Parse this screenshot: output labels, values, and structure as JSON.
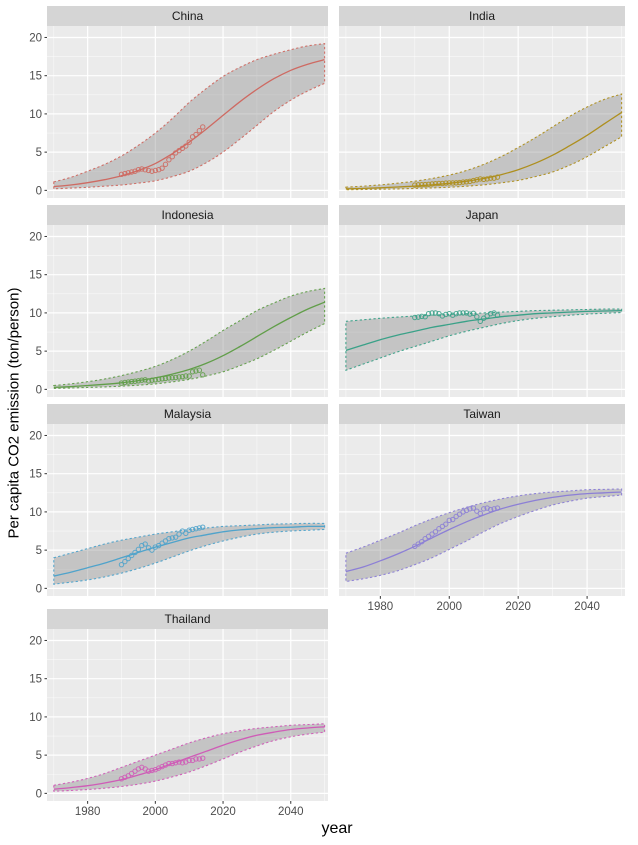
{
  "chart_data": {
    "type": "line",
    "title": "",
    "xlabel": "year",
    "ylabel": "Per capita CO2 emission (ton/person)",
    "x_ticks": [
      1980,
      2000,
      2020,
      2040
    ],
    "x_minor_ticks": [
      1970,
      1990,
      2010,
      2030,
      2050
    ],
    "y_ticks": [
      0,
      5,
      10,
      15,
      20
    ],
    "y_minor_ticks": [
      2.5,
      7.5,
      12.5,
      17.5
    ],
    "xlim": [
      1968,
      2051
    ],
    "ylim": [
      -1,
      21.5
    ],
    "grid": "white major and minor gridlines on gray panel",
    "legend_position": "none",
    "facet_layout": "2 columns x 4 rows, last cell empty",
    "ribbon_description": "gray confidence band with dashed colored outline around logistic fit",
    "curve_years": [
      1970,
      1975,
      1980,
      1985,
      1990,
      1995,
      2000,
      2005,
      2010,
      2015,
      2020,
      2025,
      2030,
      2035,
      2040,
      2045,
      2050
    ],
    "facets": [
      {
        "label": "China",
        "color": "#ce6a62",
        "fit": [
          0.5,
          0.7,
          1.0,
          1.4,
          1.9,
          2.6,
          3.5,
          4.8,
          6.3,
          8.0,
          9.8,
          11.6,
          13.2,
          14.6,
          15.7,
          16.5,
          17.1
        ],
        "upper": [
          1.1,
          1.7,
          2.5,
          3.4,
          4.5,
          5.9,
          7.5,
          9.4,
          11.5,
          13.3,
          14.9,
          16.1,
          17.1,
          17.8,
          18.4,
          18.9,
          19.2
        ],
        "lower": [
          0.2,
          0.3,
          0.4,
          0.55,
          0.7,
          0.95,
          1.25,
          1.8,
          2.5,
          3.6,
          5.0,
          6.7,
          8.5,
          10.3,
          11.8,
          13.0,
          14.0
        ],
        "points": [
          [
            1990,
            2.1
          ],
          [
            1991,
            2.2
          ],
          [
            1992,
            2.3
          ],
          [
            1993,
            2.4
          ],
          [
            1994,
            2.5
          ],
          [
            1995,
            2.7
          ],
          [
            1996,
            2.8
          ],
          [
            1997,
            2.7
          ],
          [
            1998,
            2.6
          ],
          [
            1999,
            2.5
          ],
          [
            2000,
            2.6
          ],
          [
            2001,
            2.7
          ],
          [
            2002,
            2.9
          ],
          [
            2003,
            3.4
          ],
          [
            2004,
            4.0
          ],
          [
            2005,
            4.4
          ],
          [
            2006,
            4.9
          ],
          [
            2007,
            5.2
          ],
          [
            2008,
            5.5
          ],
          [
            2009,
            5.8
          ],
          [
            2010,
            6.3
          ],
          [
            2011,
            7.0
          ],
          [
            2012,
            7.3
          ],
          [
            2013,
            7.8
          ],
          [
            2014,
            8.3
          ]
        ]
      },
      {
        "label": "India",
        "color": "#ae8f1e",
        "fit": [
          0.2,
          0.26,
          0.34,
          0.44,
          0.56,
          0.72,
          0.92,
          1.2,
          1.55,
          2.05,
          2.7,
          3.55,
          4.6,
          5.85,
          7.2,
          8.7,
          10.2
        ],
        "upper": [
          0.42,
          0.55,
          0.72,
          0.93,
          1.2,
          1.55,
          2.0,
          2.6,
          3.4,
          4.4,
          5.6,
          6.9,
          8.3,
          9.7,
          10.9,
          11.9,
          12.6
        ],
        "lower": [
          0.08,
          0.11,
          0.15,
          0.19,
          0.25,
          0.32,
          0.41,
          0.54,
          0.72,
          0.98,
          1.3,
          1.8,
          2.4,
          3.3,
          4.4,
          5.7,
          7.0
        ],
        "points": [
          [
            1990,
            0.69
          ],
          [
            1991,
            0.72
          ],
          [
            1992,
            0.74
          ],
          [
            1993,
            0.76
          ],
          [
            1994,
            0.79
          ],
          [
            1995,
            0.84
          ],
          [
            1996,
            0.87
          ],
          [
            1997,
            0.9
          ],
          [
            1998,
            0.9
          ],
          [
            1999,
            0.95
          ],
          [
            2000,
            0.97
          ],
          [
            2001,
            0.97
          ],
          [
            2002,
            0.99
          ],
          [
            2003,
            1.02
          ],
          [
            2004,
            1.08
          ],
          [
            2005,
            1.12
          ],
          [
            2006,
            1.18
          ],
          [
            2007,
            1.28
          ],
          [
            2008,
            1.38
          ],
          [
            2009,
            1.5
          ],
          [
            2010,
            1.44
          ],
          [
            2011,
            1.5
          ],
          [
            2012,
            1.6
          ],
          [
            2013,
            1.6
          ],
          [
            2014,
            1.73
          ]
        ]
      },
      {
        "label": "Indonesia",
        "color": "#619e49",
        "fit": [
          0.25,
          0.36,
          0.5,
          0.66,
          0.86,
          1.15,
          1.5,
          2.0,
          2.6,
          3.4,
          4.4,
          5.6,
          6.9,
          8.2,
          9.4,
          10.5,
          11.4
        ],
        "upper": [
          0.5,
          0.72,
          1.0,
          1.35,
          1.8,
          2.35,
          3.0,
          3.9,
          5.0,
          6.3,
          7.7,
          9.0,
          10.3,
          11.3,
          12.2,
          12.8,
          13.2
        ],
        "lower": [
          0.12,
          0.18,
          0.25,
          0.32,
          0.42,
          0.55,
          0.72,
          0.98,
          1.3,
          1.75,
          2.3,
          3.1,
          4.0,
          5.1,
          6.3,
          7.5,
          8.6
        ],
        "points": [
          [
            1990,
            0.82
          ],
          [
            1991,
            0.9
          ],
          [
            1992,
            0.96
          ],
          [
            1993,
            1.02
          ],
          [
            1994,
            1.06
          ],
          [
            1995,
            1.12
          ],
          [
            1996,
            1.2
          ],
          [
            1997,
            1.25
          ],
          [
            1998,
            1.1
          ],
          [
            1999,
            1.2
          ],
          [
            2000,
            1.25
          ],
          [
            2001,
            1.33
          ],
          [
            2002,
            1.38
          ],
          [
            2003,
            1.43
          ],
          [
            2004,
            1.5
          ],
          [
            2005,
            1.52
          ],
          [
            2006,
            1.55
          ],
          [
            2007,
            1.62
          ],
          [
            2008,
            1.66
          ],
          [
            2009,
            1.75
          ],
          [
            2010,
            1.73
          ],
          [
            2011,
            2.3
          ],
          [
            2012,
            2.4
          ],
          [
            2013,
            2.5
          ],
          [
            2014,
            1.9
          ]
        ]
      },
      {
        "label": "Japan",
        "color": "#3aa188",
        "fit": [
          5.1,
          5.8,
          6.5,
          7.1,
          7.6,
          8.1,
          8.5,
          8.9,
          9.2,
          9.5,
          9.7,
          9.9,
          10.0,
          10.1,
          10.2,
          10.25,
          10.3
        ],
        "upper": [
          8.9,
          9.1,
          9.3,
          9.45,
          9.6,
          9.7,
          9.8,
          9.9,
          10.0,
          10.1,
          10.2,
          10.3,
          10.35,
          10.4,
          10.45,
          10.5,
          10.5
        ],
        "lower": [
          2.5,
          3.3,
          4.1,
          4.9,
          5.6,
          6.3,
          7.0,
          7.6,
          8.1,
          8.6,
          9.0,
          9.3,
          9.5,
          9.7,
          9.85,
          9.95,
          10.05
        ],
        "points": [
          [
            1990,
            9.4
          ],
          [
            1991,
            9.45
          ],
          [
            1992,
            9.55
          ],
          [
            1993,
            9.5
          ],
          [
            1994,
            9.9
          ],
          [
            1995,
            10.0
          ],
          [
            1996,
            10.0
          ],
          [
            1997,
            9.9
          ],
          [
            1998,
            9.6
          ],
          [
            1999,
            9.8
          ],
          [
            2000,
            9.9
          ],
          [
            2001,
            9.7
          ],
          [
            2002,
            9.9
          ],
          [
            2003,
            10.0
          ],
          [
            2004,
            10.0
          ],
          [
            2005,
            10.0
          ],
          [
            2006,
            9.85
          ],
          [
            2007,
            9.95
          ],
          [
            2008,
            9.5
          ],
          [
            2009,
            8.9
          ],
          [
            2010,
            9.3
          ],
          [
            2011,
            9.6
          ],
          [
            2012,
            9.9
          ],
          [
            2013,
            10.0
          ],
          [
            2014,
            9.7
          ]
        ]
      },
      {
        "label": "Malaysia",
        "color": "#4fa3cb",
        "fit": [
          1.6,
          2.1,
          2.7,
          3.3,
          4.0,
          4.7,
          5.4,
          6.0,
          6.6,
          7.0,
          7.4,
          7.65,
          7.8,
          7.95,
          8.0,
          8.1,
          8.1
        ],
        "upper": [
          4.0,
          4.6,
          5.2,
          5.8,
          6.3,
          6.7,
          7.1,
          7.4,
          7.7,
          7.9,
          8.1,
          8.2,
          8.3,
          8.4,
          8.45,
          8.5,
          8.5
        ],
        "lower": [
          0.55,
          0.8,
          1.1,
          1.5,
          2.0,
          2.6,
          3.3,
          4.1,
          4.9,
          5.6,
          6.2,
          6.7,
          7.1,
          7.35,
          7.5,
          7.6,
          7.7
        ],
        "points": [
          [
            1990,
            3.1
          ],
          [
            1991,
            3.5
          ],
          [
            1992,
            3.9
          ],
          [
            1993,
            4.3
          ],
          [
            1994,
            4.7
          ],
          [
            1995,
            5.1
          ],
          [
            1996,
            5.6
          ],
          [
            1997,
            5.8
          ],
          [
            1998,
            5.3
          ],
          [
            1999,
            5.0
          ],
          [
            2000,
            5.4
          ],
          [
            2001,
            5.6
          ],
          [
            2002,
            5.9
          ],
          [
            2003,
            6.2
          ],
          [
            2004,
            6.5
          ],
          [
            2005,
            6.6
          ],
          [
            2006,
            6.7
          ],
          [
            2007,
            7.1
          ],
          [
            2008,
            7.5
          ],
          [
            2009,
            7.2
          ],
          [
            2010,
            7.6
          ],
          [
            2011,
            7.7
          ],
          [
            2012,
            7.8
          ],
          [
            2013,
            7.9
          ],
          [
            2014,
            8.0
          ]
        ]
      },
      {
        "label": "Taiwan",
        "color": "#8c7fd6",
        "fit": [
          2.2,
          2.8,
          3.6,
          4.5,
          5.5,
          6.6,
          7.7,
          8.7,
          9.6,
          10.4,
          11.0,
          11.5,
          11.9,
          12.2,
          12.4,
          12.5,
          12.6
        ],
        "upper": [
          4.6,
          5.4,
          6.3,
          7.2,
          8.2,
          9.1,
          9.9,
          10.6,
          11.2,
          11.7,
          12.1,
          12.4,
          12.6,
          12.75,
          12.9,
          12.95,
          13.0
        ],
        "lower": [
          0.9,
          1.25,
          1.7,
          2.3,
          3.1,
          4.0,
          5.1,
          6.2,
          7.4,
          8.5,
          9.4,
          10.2,
          10.9,
          11.4,
          11.8,
          12.0,
          12.2
        ],
        "points": [
          [
            1990,
            5.5
          ],
          [
            1991,
            5.8
          ],
          [
            1992,
            6.1
          ],
          [
            1993,
            6.5
          ],
          [
            1994,
            6.8
          ],
          [
            1995,
            7.1
          ],
          [
            1996,
            7.4
          ],
          [
            1997,
            7.8
          ],
          [
            1998,
            8.1
          ],
          [
            1999,
            8.4
          ],
          [
            2000,
            8.9
          ],
          [
            2001,
            9.0
          ],
          [
            2002,
            9.4
          ],
          [
            2003,
            9.7
          ],
          [
            2004,
            10.0
          ],
          [
            2005,
            10.2
          ],
          [
            2006,
            10.4
          ],
          [
            2007,
            10.5
          ],
          [
            2008,
            10.1
          ],
          [
            2009,
            9.8
          ],
          [
            2010,
            10.4
          ],
          [
            2011,
            10.5
          ],
          [
            2012,
            10.3
          ],
          [
            2013,
            10.4
          ],
          [
            2014,
            10.5
          ]
        ]
      },
      {
        "label": "Thailand",
        "color": "#cf5cb7",
        "fit": [
          0.55,
          0.75,
          1.0,
          1.35,
          1.8,
          2.4,
          3.1,
          3.9,
          4.7,
          5.5,
          6.3,
          7.0,
          7.6,
          8.0,
          8.35,
          8.55,
          8.7
        ],
        "upper": [
          1.05,
          1.45,
          1.95,
          2.6,
          3.4,
          4.2,
          5.0,
          5.8,
          6.6,
          7.25,
          7.8,
          8.2,
          8.5,
          8.7,
          8.9,
          9.0,
          9.1
        ],
        "lower": [
          0.28,
          0.37,
          0.5,
          0.67,
          0.9,
          1.2,
          1.6,
          2.15,
          2.8,
          3.6,
          4.5,
          5.4,
          6.2,
          6.9,
          7.4,
          7.75,
          8.0
        ],
        "points": [
          [
            1990,
            1.9
          ],
          [
            1991,
            2.1
          ],
          [
            1992,
            2.3
          ],
          [
            1993,
            2.6
          ],
          [
            1994,
            2.9
          ],
          [
            1995,
            3.2
          ],
          [
            1996,
            3.4
          ],
          [
            1997,
            3.2
          ],
          [
            1998,
            2.9
          ],
          [
            1999,
            3.0
          ],
          [
            2000,
            3.1
          ],
          [
            2001,
            3.3
          ],
          [
            2002,
            3.5
          ],
          [
            2003,
            3.7
          ],
          [
            2004,
            3.9
          ],
          [
            2005,
            3.9
          ],
          [
            2006,
            4.0
          ],
          [
            2007,
            4.1
          ],
          [
            2008,
            4.0
          ],
          [
            2009,
            4.1
          ],
          [
            2010,
            4.3
          ],
          [
            2011,
            4.3
          ],
          [
            2012,
            4.5
          ],
          [
            2013,
            4.5
          ],
          [
            2014,
            4.6
          ]
        ]
      }
    ]
  },
  "colors": {
    "page_bg": "#ffffff",
    "panel_bg": "#ebebeb",
    "strip_bg": "#d5d5d5",
    "grid_major": "#ffffff",
    "grid_minor": "#ffffff",
    "ribbon_fill": "#7f7f7f",
    "tick_label": "#4d4d4d",
    "tick_mark": "#333333",
    "strip_text": "#1a1a1a",
    "axis_title": "#000000"
  }
}
